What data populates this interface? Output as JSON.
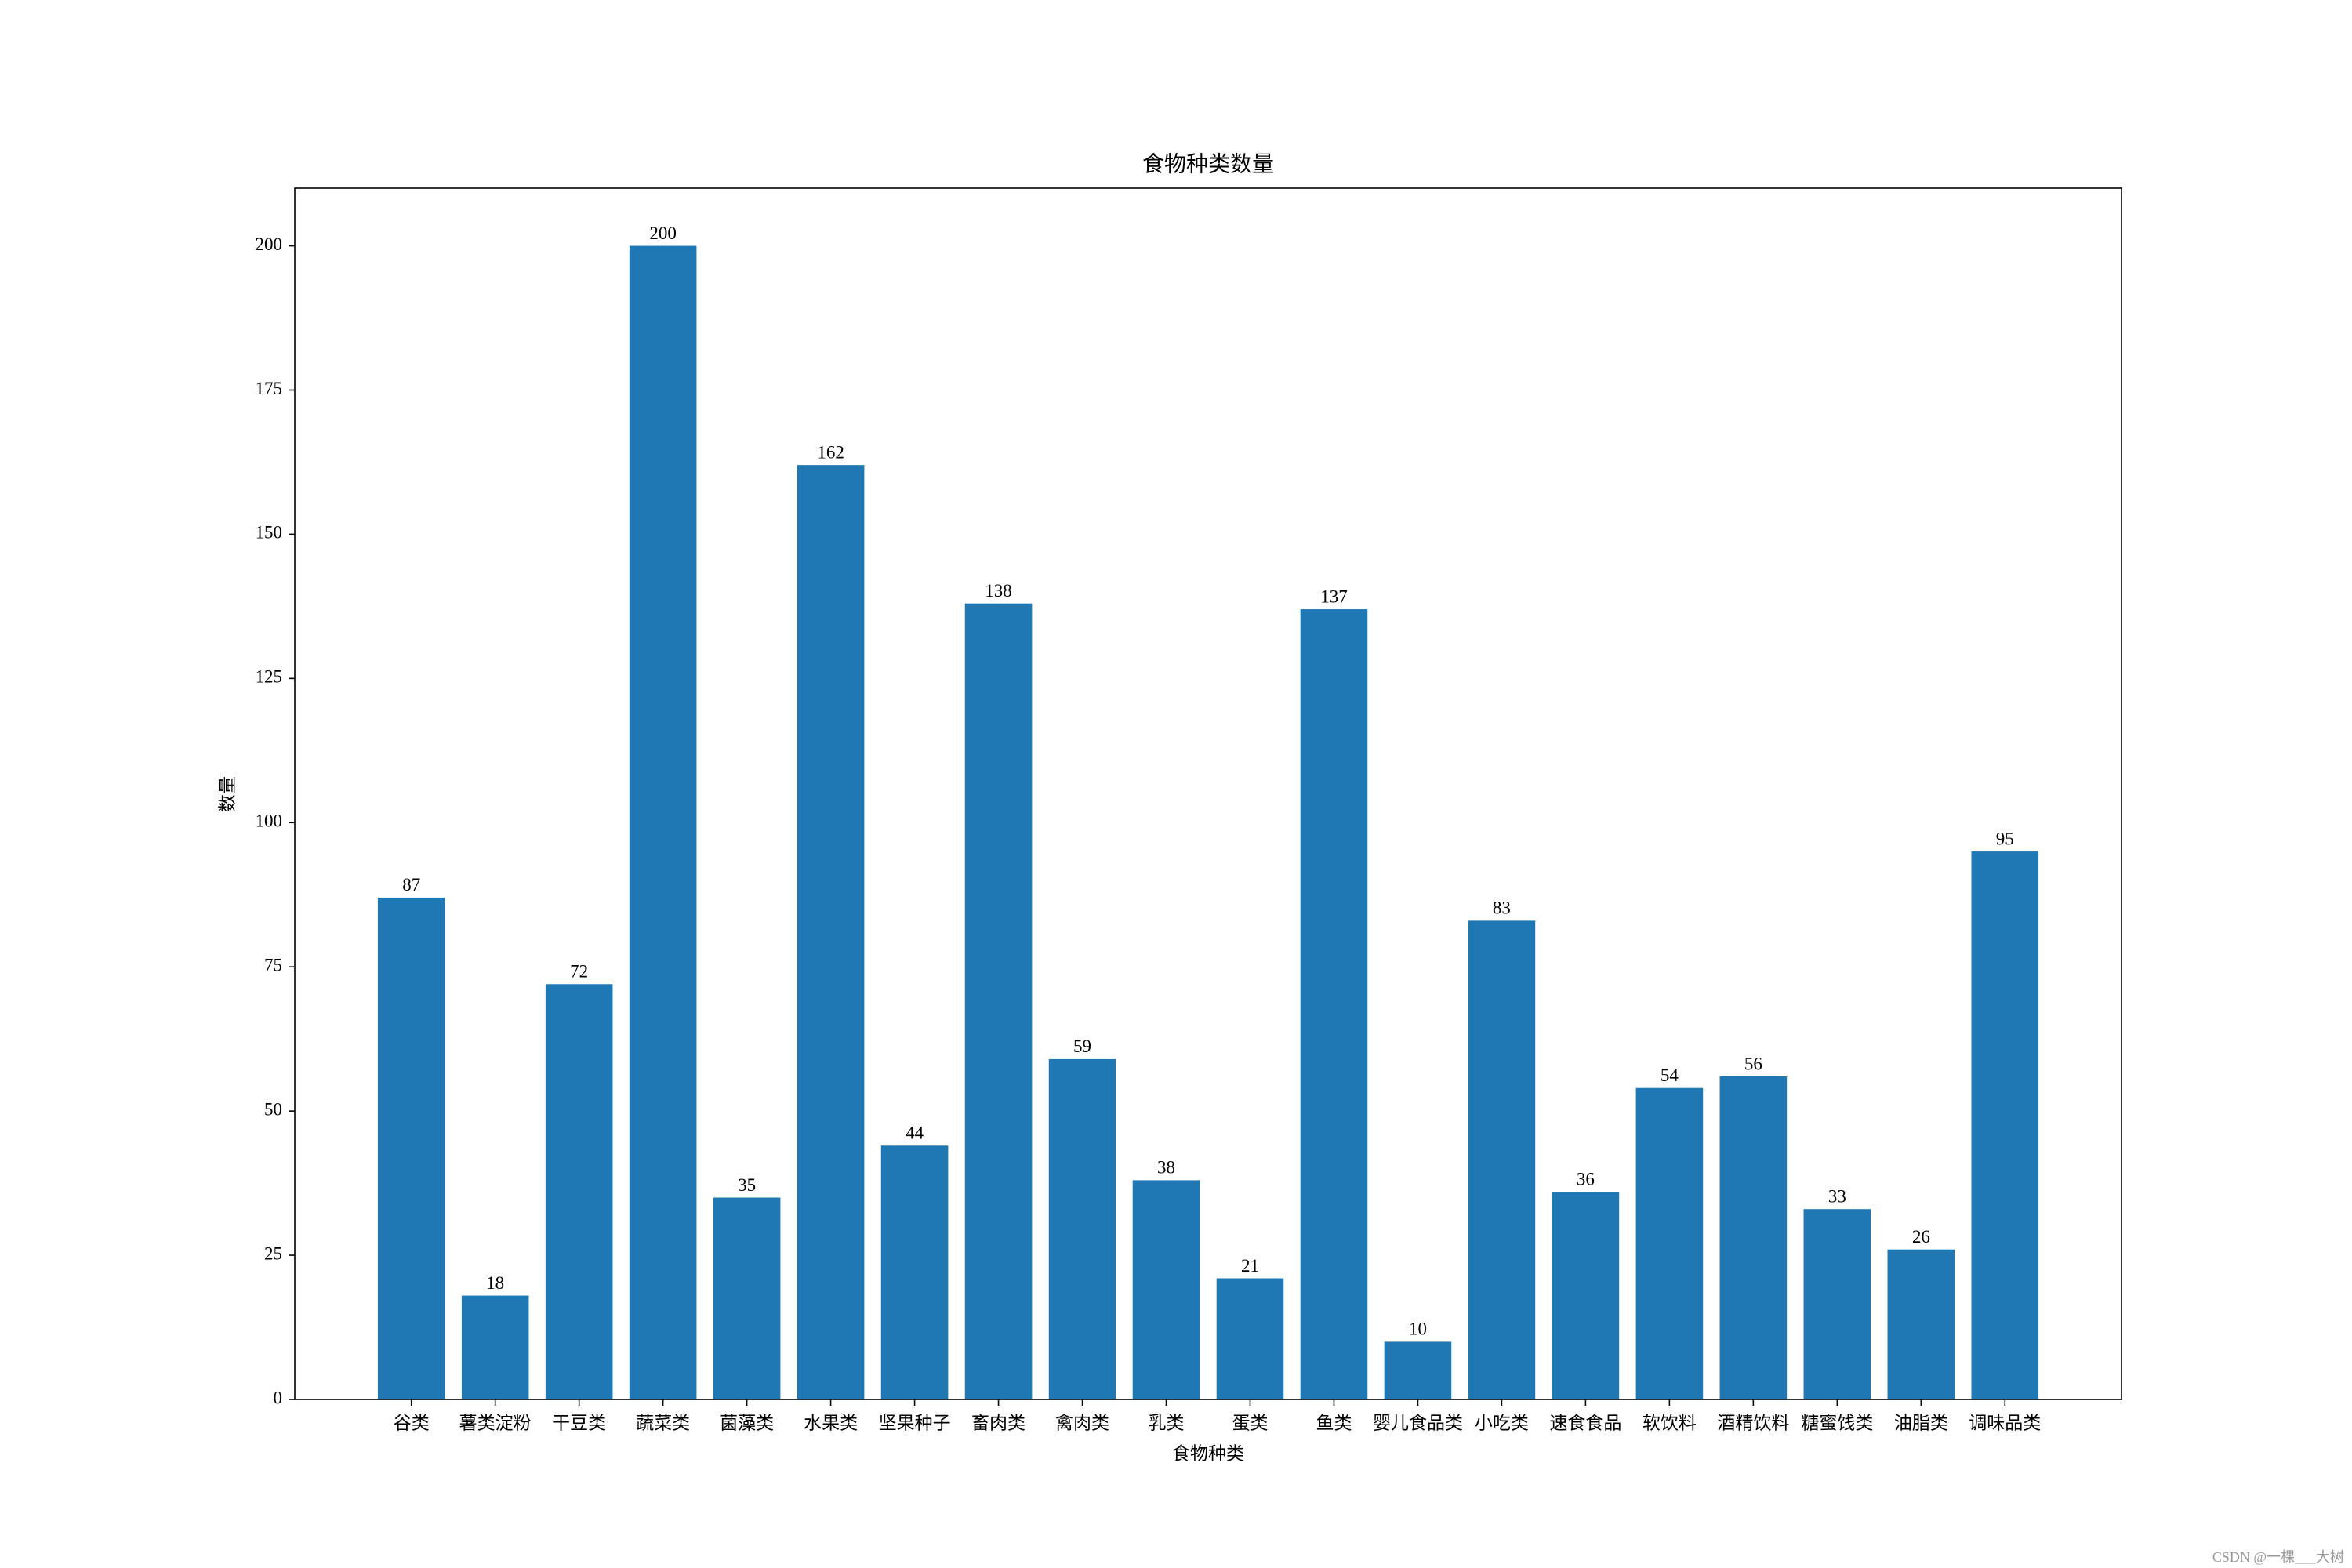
{
  "chart_data": {
    "type": "bar",
    "title": "食物种类数量",
    "x_label": "食物种类",
    "y_label": "数量",
    "categories": [
      "谷类",
      "薯类淀粉",
      "干豆类",
      "蔬菜类",
      "菌藻类",
      "水果类",
      "坚果种子",
      "畜肉类",
      "禽肉类",
      "乳类",
      "蛋类",
      "鱼类",
      "婴儿食品类",
      "小吃类",
      "速食食品",
      "软饮料",
      "酒精饮料",
      "糖蜜饯类",
      "油脂类",
      "调味品类"
    ],
    "values": [
      87,
      18,
      72,
      200,
      35,
      162,
      44,
      138,
      59,
      38,
      21,
      137,
      10,
      83,
      36,
      54,
      56,
      33,
      26,
      95
    ],
    "color": "#1f77b4",
    "ylim": [
      0,
      210
    ],
    "yticks": [
      0,
      25,
      50,
      75,
      100,
      125,
      150,
      175,
      200
    ],
    "grid": false
  },
  "watermark": "CSDN @一棵___大树"
}
